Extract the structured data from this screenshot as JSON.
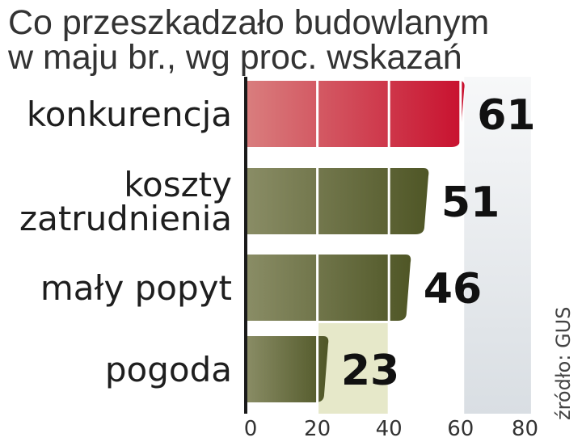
{
  "title_lines": [
    "Co przeszkadzało budowlanym",
    "w maju br., wg proc. wskazań"
  ],
  "source": "źródło: GUS",
  "colors": {
    "highlight_bar": "#c8102e",
    "bar": "#5b6230",
    "band_light": "#e6e8c9",
    "band_gray": "#dde1e5"
  },
  "chart_data": {
    "type": "bar",
    "orientation": "horizontal",
    "title": "Co przeszkadzało budowlanym w maju br., wg proc. wskazań",
    "categories": [
      [
        "konkurencja"
      ],
      [
        "koszty",
        "zatrudnienia"
      ],
      [
        "mały popyt"
      ],
      [
        "pogoda"
      ]
    ],
    "values": [
      61,
      51,
      46,
      23
    ],
    "xlim": [
      0,
      80
    ],
    "xticks": [
      0,
      20,
      40,
      60,
      80
    ],
    "highlight_index": 0
  }
}
